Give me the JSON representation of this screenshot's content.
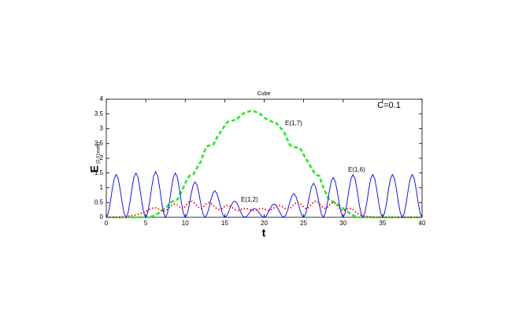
{
  "chart_data": {
    "type": "line",
    "title": "Cube",
    "xlabel": "t",
    "ylabel": "E",
    "ylabel_sub": "(0.01eaht)",
    "annotations": [
      "C=0.1"
    ],
    "xlim": [
      0,
      40
    ],
    "ylim": [
      0,
      4
    ],
    "xticks": [
      0,
      5,
      10,
      15,
      20,
      25,
      30,
      35,
      40
    ],
    "yticks": [
      0,
      0.5,
      1,
      1.5,
      2,
      2.5,
      3,
      3.5,
      4
    ],
    "x": [
      0,
      0.25,
      0.5,
      0.75,
      1,
      1.25,
      1.5,
      1.75,
      2,
      2.25,
      2.5,
      2.75,
      3,
      3.25,
      3.5,
      3.75,
      4,
      4.25,
      4.5,
      4.75,
      5,
      5.25,
      5.5,
      5.75,
      6,
      6.25,
      6.5,
      6.75,
      7,
      7.25,
      7.5,
      7.75,
      8,
      8.25,
      8.5,
      8.75,
      9,
      9.25,
      9.5,
      9.75,
      10,
      10.25,
      10.5,
      10.75,
      11,
      11.25,
      11.5,
      11.75,
      12,
      12.25,
      12.5,
      12.75,
      13,
      13.25,
      13.5,
      13.75,
      14,
      14.25,
      14.5,
      14.75,
      15,
      15.25,
      15.5,
      15.75,
      16,
      16.25,
      16.5,
      16.75,
      17,
      17.25,
      17.5,
      17.75,
      18,
      18.25,
      18.5,
      18.75,
      19,
      19.25,
      19.5,
      19.75,
      20,
      20.25,
      20.5,
      20.75,
      21,
      21.25,
      21.5,
      21.75,
      22,
      22.25,
      22.5,
      22.75,
      23,
      23.25,
      23.5,
      23.75,
      24,
      24.25,
      24.5,
      24.75,
      25,
      25.25,
      25.5,
      25.75,
      26,
      26.25,
      26.5,
      26.75,
      27,
      27.25,
      27.5,
      27.75,
      28,
      28.25,
      28.5,
      28.75,
      29,
      29.25,
      29.5,
      29.75,
      30,
      30.25,
      30.5,
      30.75,
      31,
      31.25,
      31.5,
      31.75,
      32,
      32.25,
      32.5,
      32.75,
      33,
      33.25,
      33.5,
      33.75,
      34,
      34.25,
      34.5,
      34.75,
      35,
      35.25,
      35.5,
      35.75,
      36,
      36.25,
      36.5,
      36.75,
      37,
      37.25,
      37.5,
      37.75,
      38,
      38.25,
      38.5,
      38.75,
      39,
      39.25,
      39.5,
      39.75,
      40
    ],
    "series": [
      {
        "name": "E(1,7)",
        "color": "#22ee22",
        "style": "dashed",
        "values": [
          0,
          0,
          0,
          0,
          0,
          0,
          0,
          0,
          0,
          0,
          0,
          0,
          0,
          0,
          0,
          0,
          0,
          0,
          0,
          0,
          0,
          0.01,
          0.02,
          0.03,
          0.05,
          0.08,
          0.12,
          0.17,
          0.22,
          0.27,
          0.3,
          0.38,
          0.45,
          0.52,
          0.55,
          0.58,
          0.6,
          0.72,
          0.86,
          1.0,
          1.15,
          1.3,
          1.4,
          1.43,
          1.45,
          1.55,
          1.68,
          1.8,
          1.9,
          2.1,
          2.28,
          2.4,
          2.43,
          2.44,
          2.45,
          2.55,
          2.7,
          2.8,
          2.9,
          3.0,
          3.1,
          3.2,
          3.25,
          3.27,
          3.28,
          3.29,
          3.3,
          3.38,
          3.45,
          3.5,
          3.53,
          3.56,
          3.58,
          3.6,
          3.6,
          3.59,
          3.56,
          3.53,
          3.5,
          3.44,
          3.38,
          3.33,
          3.3,
          3.27,
          3.24,
          3.22,
          3.2,
          3.12,
          3.05,
          2.98,
          2.9,
          2.75,
          2.6,
          2.45,
          2.4,
          2.38,
          2.37,
          2.36,
          2.35,
          2.25,
          2.12,
          2.0,
          1.9,
          1.78,
          1.65,
          1.55,
          1.45,
          1.42,
          1.4,
          1.2,
          1.0,
          0.85,
          0.7,
          0.6,
          0.56,
          0.53,
          0.5,
          0.45,
          0.4,
          0.35,
          0.3,
          0.25,
          0.2,
          0.15,
          0.1,
          0.07,
          0.04,
          0.02,
          0,
          0,
          0,
          0,
          0,
          0,
          0,
          0,
          0,
          0,
          0,
          0,
          0,
          0,
          0,
          0,
          0,
          0,
          0,
          0,
          0,
          0,
          0,
          0,
          0,
          0,
          0,
          0,
          0,
          0,
          0,
          0,
          0
        ]
      },
      {
        "name": "E(1,6)",
        "color": "#0000ff",
        "style": "solid",
        "values": [
          0,
          0.14,
          0.5,
          0.95,
          1.31,
          1.45,
          1.31,
          0.95,
          0.5,
          0.14,
          0,
          0.14,
          0.52,
          0.98,
          1.36,
          1.5,
          1.36,
          0.98,
          0.52,
          0.14,
          0,
          0.15,
          0.53,
          1.02,
          1.4,
          1.55,
          1.4,
          1.02,
          0.53,
          0.15,
          0,
          0.14,
          0.52,
          0.98,
          1.36,
          1.5,
          1.36,
          0.98,
          0.52,
          0.14,
          0,
          0.11,
          0.41,
          0.79,
          1.09,
          1.2,
          1.09,
          0.79,
          0.41,
          0.11,
          0,
          0.09,
          0.31,
          0.59,
          0.81,
          0.9,
          0.81,
          0.59,
          0.31,
          0.09,
          0,
          0.05,
          0.19,
          0.36,
          0.5,
          0.55,
          0.5,
          0.36,
          0.19,
          0.05,
          0,
          0.03,
          0.1,
          0.2,
          0.27,
          0.3,
          0.27,
          0.2,
          0.1,
          0.03,
          0,
          0.04,
          0.16,
          0.29,
          0.41,
          0.45,
          0.41,
          0.29,
          0.16,
          0.04,
          0,
          0.08,
          0.28,
          0.52,
          0.72,
          0.8,
          0.72,
          0.52,
          0.28,
          0.08,
          0,
          0.11,
          0.4,
          0.75,
          1.04,
          1.15,
          1.04,
          0.75,
          0.4,
          0.11,
          0,
          0.13,
          0.47,
          0.88,
          1.22,
          1.35,
          1.22,
          0.88,
          0.47,
          0.13,
          0,
          0.14,
          0.5,
          0.95,
          1.31,
          1.45,
          1.31,
          0.95,
          0.5,
          0.14,
          0,
          0.14,
          0.5,
          0.95,
          1.31,
          1.45,
          1.31,
          0.95,
          0.5,
          0.14,
          0,
          0.14,
          0.5,
          0.95,
          1.31,
          1.45,
          1.31,
          0.95,
          0.5,
          0.14,
          0,
          0.14,
          0.5,
          0.95,
          1.31,
          1.45,
          1.31,
          0.95,
          0.5,
          0.14,
          0
        ]
      },
      {
        "name": "E(1,2)",
        "color": "#ff0000",
        "style": "dotted",
        "values": [
          0,
          0,
          0,
          0,
          0,
          0,
          0,
          0.01,
          0.01,
          0.02,
          0.03,
          0.04,
          0.05,
          0.06,
          0.07,
          0.08,
          0.1,
          0.12,
          0.14,
          0.16,
          0.2,
          0.24,
          0.28,
          0.3,
          0.32,
          0.32,
          0.3,
          0.26,
          0.22,
          0.2,
          0.22,
          0.27,
          0.33,
          0.4,
          0.44,
          0.45,
          0.42,
          0.36,
          0.3,
          0.3,
          0.36,
          0.45,
          0.52,
          0.55,
          0.53,
          0.46,
          0.38,
          0.32,
          0.3,
          0.34,
          0.42,
          0.48,
          0.5,
          0.48,
          0.42,
          0.35,
          0.29,
          0.26,
          0.27,
          0.32,
          0.37,
          0.4,
          0.4,
          0.37,
          0.32,
          0.27,
          0.24,
          0.23,
          0.25,
          0.28,
          0.3,
          0.3,
          0.28,
          0.25,
          0.23,
          0.23,
          0.25,
          0.28,
          0.3,
          0.3,
          0.28,
          0.25,
          0.23,
          0.24,
          0.27,
          0.32,
          0.37,
          0.4,
          0.4,
          0.37,
          0.32,
          0.28,
          0.27,
          0.3,
          0.36,
          0.43,
          0.48,
          0.5,
          0.48,
          0.42,
          0.35,
          0.3,
          0.3,
          0.36,
          0.45,
          0.52,
          0.55,
          0.53,
          0.46,
          0.38,
          0.32,
          0.3,
          0.34,
          0.42,
          0.48,
          0.5,
          0.47,
          0.4,
          0.32,
          0.25,
          0.22,
          0.24,
          0.28,
          0.3,
          0.3,
          0.26,
          0.2,
          0.14,
          0.1,
          0.07,
          0.05,
          0.04,
          0.03,
          0.02,
          0.02,
          0.01,
          0,
          0,
          0,
          0,
          0,
          0,
          0,
          0,
          0,
          0,
          0,
          0,
          0,
          0,
          0,
          0,
          0,
          0,
          0,
          0,
          0,
          0,
          0,
          0,
          0
        ]
      }
    ]
  }
}
